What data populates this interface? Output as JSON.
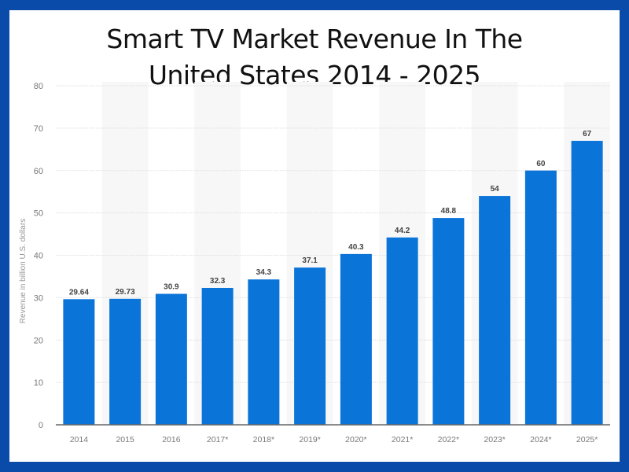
{
  "chart_data": {
    "type": "bar",
    "title": "Smart TV Market Revenue In The United States 2014 - 2025",
    "title_lines": [
      "Smart TV Market Revenue In The",
      "United States 2014 - 2025"
    ],
    "categories": [
      "2014",
      "2015",
      "2016",
      "2017*",
      "2018*",
      "2019*",
      "2020*",
      "2021*",
      "2022*",
      "2023*",
      "2024*",
      "2025*"
    ],
    "values": [
      29.64,
      29.73,
      30.9,
      32.3,
      34.3,
      37.1,
      40.3,
      44.2,
      48.8,
      54,
      60,
      67
    ],
    "value_labels": [
      "29.64",
      "29.73",
      "30.9",
      "32.3",
      "34.3",
      "37.1",
      "40.3",
      "44.2",
      "48.8",
      "54",
      "60",
      "67"
    ],
    "xlabel": "",
    "ylabel": "Revenue in billion U.S. dollars",
    "ylim": [
      0,
      80
    ],
    "yticks": [
      0,
      10,
      20,
      30,
      40,
      50,
      60,
      70,
      80
    ],
    "grid": true,
    "legend": "none",
    "colors": {
      "bar": "#0a74d9",
      "frame": "#0a4aa8",
      "band": "#f7f7f7",
      "grid": "#e4e4e4"
    }
  }
}
